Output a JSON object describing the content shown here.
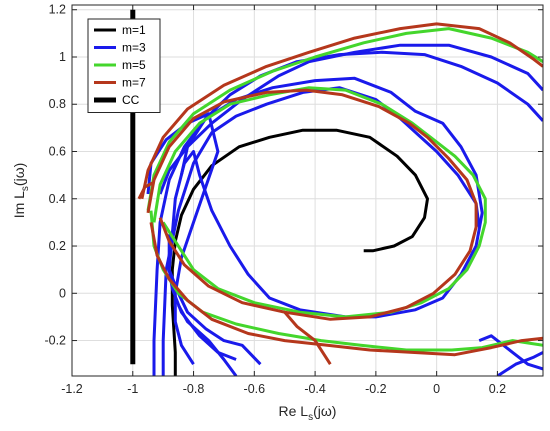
{
  "chart_data": {
    "type": "line",
    "title": "",
    "xlabel": {
      "main": "Re L",
      "sub": "s",
      "tail": "(jω)"
    },
    "ylabel": {
      "main": "Im L",
      "sub": "s",
      "tail": "(jω)"
    },
    "xlim": [
      -1.2,
      0.35
    ],
    "ylim": [
      -0.35,
      1.22
    ],
    "xticks": [
      -1.2,
      -1,
      -0.8,
      -0.6,
      -0.4,
      -0.2,
      0,
      0.2
    ],
    "xtick_labels": [
      "-1.2",
      "-1",
      "-0.8",
      "-0.6",
      "-0.4",
      "-0.2",
      "0",
      "0.2"
    ],
    "yticks": [
      -0.2,
      0,
      0.2,
      0.4,
      0.6,
      0.8,
      1,
      1.2
    ],
    "ytick_labels": [
      "-0.2",
      "0",
      "0.2",
      "0.4",
      "0.6",
      "0.8",
      "1",
      "1.2"
    ],
    "grid": true,
    "legend_position": "top-left",
    "series": [
      {
        "name": "m=1",
        "color": "#000000",
        "width": 3,
        "segments": [
          [
            [
              -0.86,
              -0.35
            ],
            [
              -0.86,
              -0.25
            ],
            [
              -0.87,
              -0.05
            ],
            [
              -0.87,
              0.1
            ],
            [
              -0.86,
              0.22
            ],
            [
              -0.84,
              0.33
            ],
            [
              -0.8,
              0.44
            ],
            [
              -0.74,
              0.54
            ],
            [
              -0.65,
              0.62
            ],
            [
              -0.55,
              0.66
            ],
            [
              -0.44,
              0.69
            ],
            [
              -0.33,
              0.69
            ],
            [
              -0.22,
              0.66
            ],
            [
              -0.13,
              0.58
            ],
            [
              -0.07,
              0.5
            ],
            [
              -0.03,
              0.4
            ],
            [
              -0.04,
              0.32
            ],
            [
              -0.08,
              0.24
            ],
            [
              -0.14,
              0.2
            ],
            [
              -0.21,
              0.18
            ],
            [
              -0.24,
              0.18
            ]
          ]
        ]
      },
      {
        "name": "m=3",
        "color": "#1a1aeb",
        "width": 3,
        "segments": [
          [
            [
              -0.93,
              -0.35
            ],
            [
              -0.93,
              -0.2
            ],
            [
              -0.92,
              0.1
            ],
            [
              -0.91,
              0.3
            ],
            [
              -0.88,
              0.48
            ],
            [
              -0.83,
              0.62
            ],
            [
              -0.76,
              0.74
            ],
            [
              -0.66,
              0.82
            ],
            [
              -0.54,
              0.87
            ],
            [
              -0.4,
              0.9
            ],
            [
              -0.27,
              0.91
            ],
            [
              -0.15,
              0.85
            ],
            [
              -0.07,
              0.77
            ],
            [
              0.02,
              0.72
            ],
            [
              0.08,
              0.62
            ],
            [
              0.13,
              0.5
            ],
            [
              0.15,
              0.34
            ],
            [
              0.13,
              0.2
            ],
            [
              0.08,
              0.08
            ],
            [
              0.02,
              -0.02
            ],
            [
              -0.07,
              -0.07
            ],
            [
              -0.2,
              -0.1
            ],
            [
              -0.3,
              -0.1
            ],
            [
              -0.45,
              -0.07
            ],
            [
              -0.55,
              -0.02
            ],
            [
              -0.62,
              0.08
            ],
            [
              -0.68,
              0.2
            ],
            [
              -0.74,
              0.35
            ],
            [
              -0.78,
              0.5
            ],
            [
              -0.8,
              0.6
            ],
            [
              -0.83,
              0.55
            ],
            [
              -0.86,
              0.4
            ],
            [
              -0.87,
              0.25
            ],
            [
              -0.88,
              0.1
            ],
            [
              -0.87,
              0.02
            ],
            [
              -0.84,
              -0.08
            ],
            [
              -0.78,
              -0.18
            ],
            [
              -0.72,
              -0.25
            ],
            [
              -0.66,
              -0.28
            ]
          ],
          [
            [
              -0.9,
              -0.35
            ],
            [
              -0.9,
              -0.2
            ],
            [
              -0.89,
              0.1
            ],
            [
              -0.85,
              0.35
            ],
            [
              -0.8,
              0.55
            ],
            [
              -0.74,
              0.68
            ],
            [
              -0.66,
              0.75
            ],
            [
              -0.56,
              0.8
            ],
            [
              -0.44,
              0.85
            ],
            [
              -0.32,
              0.87
            ],
            [
              -0.2,
              0.82
            ],
            [
              -0.12,
              0.74
            ],
            [
              -0.06,
              0.67
            ],
            [
              0.0,
              0.6
            ],
            [
              0.07,
              0.5
            ],
            [
              0.13,
              0.38
            ],
            [
              0.14,
              0.28
            ]
          ],
          [
            [
              -0.91,
              0.42
            ],
            [
              -0.88,
              0.52
            ],
            [
              -0.82,
              0.62
            ],
            [
              -0.74,
              0.72
            ],
            [
              -0.64,
              0.82
            ],
            [
              -0.52,
              0.92
            ],
            [
              -0.42,
              0.98
            ],
            [
              -0.27,
              1.02
            ],
            [
              -0.12,
              1.05
            ],
            [
              0.04,
              1.05
            ],
            [
              0.18,
              1.0
            ],
            [
              0.3,
              0.93
            ],
            [
              0.35,
              0.86
            ]
          ],
          [
            [
              -0.84,
              0.5
            ],
            [
              -0.82,
              0.62
            ],
            [
              -0.76,
              0.74
            ],
            [
              -0.68,
              0.84
            ],
            [
              -0.58,
              0.92
            ],
            [
              -0.46,
              0.98
            ],
            [
              -0.32,
              1.01
            ],
            [
              -0.18,
              1.02
            ],
            [
              -0.04,
              1.01
            ],
            [
              0.08,
              0.96
            ],
            [
              0.2,
              0.89
            ],
            [
              0.3,
              0.8
            ],
            [
              0.35,
              0.73
            ]
          ],
          [
            [
              -0.95,
              0.42
            ],
            [
              -0.94,
              0.55
            ],
            [
              -0.89,
              0.65
            ],
            [
              -0.82,
              0.72
            ],
            [
              -0.75,
              0.76
            ],
            [
              -0.72,
              0.6
            ],
            [
              -0.76,
              0.45
            ],
            [
              -0.8,
              0.3
            ],
            [
              -0.84,
              0.15
            ],
            [
              -0.86,
              0.0
            ],
            [
              -0.86,
              -0.12
            ],
            [
              -0.84,
              -0.22
            ],
            [
              -0.8,
              -0.3
            ]
          ],
          [
            [
              -0.88,
              0.25
            ],
            [
              -0.88,
              0.1
            ],
            [
              -0.85,
              0.0
            ],
            [
              -0.82,
              -0.08
            ],
            [
              -0.76,
              -0.15
            ],
            [
              -0.7,
              -0.2
            ],
            [
              -0.64,
              -0.22
            ],
            [
              -0.58,
              -0.3
            ]
          ],
          [
            [
              0.14,
              -0.2
            ],
            [
              0.18,
              -0.18
            ],
            [
              0.25,
              -0.25
            ],
            [
              0.3,
              -0.3
            ],
            [
              0.35,
              -0.32
            ]
          ],
          [
            [
              0.2,
              -0.35
            ],
            [
              0.26,
              -0.3
            ],
            [
              0.32,
              -0.27
            ],
            [
              0.35,
              -0.25
            ]
          ],
          [
            [
              -0.85,
              -0.05
            ],
            [
              -0.82,
              -0.12
            ],
            [
              -0.75,
              -0.2
            ],
            [
              -0.7,
              -0.28
            ],
            [
              -0.66,
              -0.35
            ]
          ]
        ]
      },
      {
        "name": "m=5",
        "color": "#44d62c",
        "width": 3,
        "segments": [
          [
            [
              -0.95,
              0.35
            ],
            [
              -0.93,
              0.5
            ],
            [
              -0.88,
              0.64
            ],
            [
              -0.8,
              0.76
            ],
            [
              -0.68,
              0.86
            ],
            [
              -0.54,
              0.94
            ],
            [
              -0.4,
              1.0
            ],
            [
              -0.24,
              1.06
            ],
            [
              -0.1,
              1.1
            ],
            [
              0.04,
              1.12
            ],
            [
              0.18,
              1.08
            ],
            [
              0.3,
              1.02
            ],
            [
              0.35,
              0.98
            ]
          ],
          [
            [
              -0.93,
              0.3
            ],
            [
              -0.91,
              0.46
            ],
            [
              -0.86,
              0.6
            ],
            [
              -0.78,
              0.72
            ],
            [
              -0.68,
              0.8
            ],
            [
              -0.55,
              0.84
            ],
            [
              -0.42,
              0.87
            ],
            [
              -0.3,
              0.86
            ],
            [
              -0.18,
              0.8
            ],
            [
              -0.08,
              0.72
            ],
            [
              -0.02,
              0.66
            ],
            [
              0.06,
              0.58
            ],
            [
              0.12,
              0.5
            ],
            [
              0.16,
              0.4
            ],
            [
              0.16,
              0.3
            ],
            [
              0.14,
              0.2
            ],
            [
              0.1,
              0.1
            ],
            [
              0.04,
              0.02
            ],
            [
              -0.05,
              -0.04
            ],
            [
              -0.15,
              -0.08
            ],
            [
              -0.3,
              -0.1
            ],
            [
              -0.45,
              -0.08
            ],
            [
              -0.6,
              -0.04
            ],
            [
              -0.72,
              0.02
            ],
            [
              -0.8,
              0.1
            ],
            [
              -0.86,
              0.22
            ],
            [
              -0.9,
              0.3
            ]
          ],
          [
            [
              -0.94,
              0.35
            ],
            [
              -0.93,
              0.2
            ],
            [
              -0.9,
              0.1
            ],
            [
              -0.85,
              0.0
            ],
            [
              -0.77,
              -0.08
            ],
            [
              -0.66,
              -0.13
            ],
            [
              -0.52,
              -0.17
            ],
            [
              -0.38,
              -0.2
            ],
            [
              -0.25,
              -0.22
            ],
            [
              -0.1,
              -0.24
            ],
            [
              0.05,
              -0.24
            ],
            [
              0.15,
              -0.23
            ],
            [
              0.25,
              -0.2
            ],
            [
              0.35,
              -0.22
            ]
          ]
        ]
      },
      {
        "name": "m=7",
        "color": "#b5371c",
        "width": 3,
        "segments": [
          [
            [
              -0.97,
              0.4
            ],
            [
              -0.95,
              0.52
            ],
            [
              -0.9,
              0.66
            ],
            [
              -0.82,
              0.78
            ],
            [
              -0.7,
              0.88
            ],
            [
              -0.56,
              0.96
            ],
            [
              -0.42,
              1.02
            ],
            [
              -0.27,
              1.08
            ],
            [
              -0.12,
              1.12
            ],
            [
              0.0,
              1.14
            ],
            [
              0.14,
              1.12
            ],
            [
              0.24,
              1.06
            ],
            [
              0.32,
              0.99
            ],
            [
              0.35,
              0.96
            ]
          ],
          [
            [
              -0.95,
              0.34
            ],
            [
              -0.93,
              0.48
            ],
            [
              -0.88,
              0.62
            ],
            [
              -0.8,
              0.74
            ],
            [
              -0.7,
              0.81
            ],
            [
              -0.56,
              0.85
            ],
            [
              -0.43,
              0.86
            ],
            [
              -0.31,
              0.84
            ],
            [
              -0.19,
              0.79
            ],
            [
              -0.09,
              0.72
            ],
            [
              -0.03,
              0.66
            ],
            [
              0.04,
              0.57
            ],
            [
              0.1,
              0.48
            ],
            [
              0.13,
              0.38
            ],
            [
              0.13,
              0.28
            ],
            [
              0.11,
              0.18
            ],
            [
              0.06,
              0.08
            ],
            [
              -0.01,
              0.0
            ],
            [
              -0.1,
              -0.06
            ],
            [
              -0.22,
              -0.1
            ],
            [
              -0.35,
              -0.11
            ],
            [
              -0.5,
              -0.08
            ],
            [
              -0.64,
              -0.04
            ],
            [
              -0.75,
              0.03
            ],
            [
              -0.83,
              0.12
            ],
            [
              -0.88,
              0.22
            ],
            [
              -0.91,
              0.32
            ]
          ],
          [
            [
              -0.94,
              0.3
            ],
            [
              -0.92,
              0.16
            ],
            [
              -0.88,
              0.06
            ],
            [
              -0.82,
              -0.03
            ],
            [
              -0.74,
              -0.11
            ],
            [
              -0.62,
              -0.17
            ],
            [
              -0.5,
              -0.2
            ],
            [
              -0.36,
              -0.22
            ],
            [
              -0.22,
              -0.24
            ],
            [
              -0.08,
              -0.25
            ],
            [
              0.06,
              -0.26
            ],
            [
              0.18,
              -0.23
            ],
            [
              0.28,
              -0.2
            ],
            [
              0.35,
              -0.19
            ]
          ],
          [
            [
              -0.98,
              0.4
            ],
            [
              -0.96,
              0.45
            ],
            [
              -0.93,
              0.47
            ]
          ],
          [
            [
              -0.5,
              -0.08
            ],
            [
              -0.46,
              -0.14
            ],
            [
              -0.4,
              -0.2
            ],
            [
              -0.35,
              -0.3
            ]
          ]
        ]
      },
      {
        "name": "CC",
        "color": "#000000",
        "width": 5,
        "segments": [
          [
            [
              -1.0,
              -0.3
            ],
            [
              -1.0,
              1.2
            ]
          ]
        ]
      }
    ]
  }
}
